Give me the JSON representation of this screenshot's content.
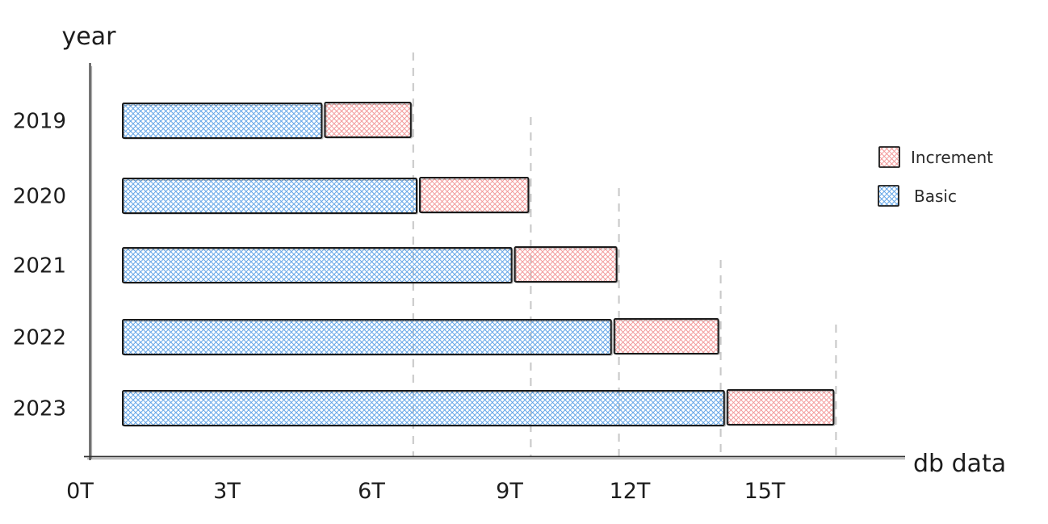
{
  "page": {
    "background": "#ffffff"
  },
  "chart_data": {
    "type": "bar",
    "orientation": "horizontal",
    "stacked": true,
    "style": "hand-drawn sketch with crosshatch fills",
    "title": "",
    "xlabel": "db data",
    "ylabel": "year",
    "categories": [
      "2019",
      "2020",
      "2021",
      "2022",
      "2023"
    ],
    "series": [
      {
        "name": "Basic",
        "color": "#5fa3e7",
        "values": [
          4.4,
          6.5,
          8.6,
          10.8,
          13.3
        ]
      },
      {
        "name": "Increment",
        "color": "#f39898",
        "values": [
          1.9,
          2.4,
          2.25,
          2.3,
          2.35
        ]
      }
    ],
    "totals": [
      6.3,
      8.9,
      10.85,
      13.1,
      15.65
    ],
    "x_ticks": [
      {
        "label": "0T",
        "value": 0
      },
      {
        "label": "3T",
        "value": 3
      },
      {
        "label": "6T",
        "value": 6
      },
      {
        "label": "9T",
        "value": 9
      },
      {
        "label": "12T",
        "value": 12
      },
      {
        "label": "15T",
        "value": 15
      }
    ],
    "xlim": [
      0,
      16.5
    ],
    "grid": "dashed vertical guide at the end of each stacked bar",
    "legend": {
      "position": "upper right",
      "items": [
        "Increment",
        "Basic"
      ]
    }
  },
  "colors": {
    "basic_fill": "#5fa3e7",
    "increment_fill": "#f39898",
    "bar_border": "#1b1b1b",
    "axis": "#3a3a3a",
    "guide": "#c9c9c9",
    "text": "#1d1d1d"
  }
}
